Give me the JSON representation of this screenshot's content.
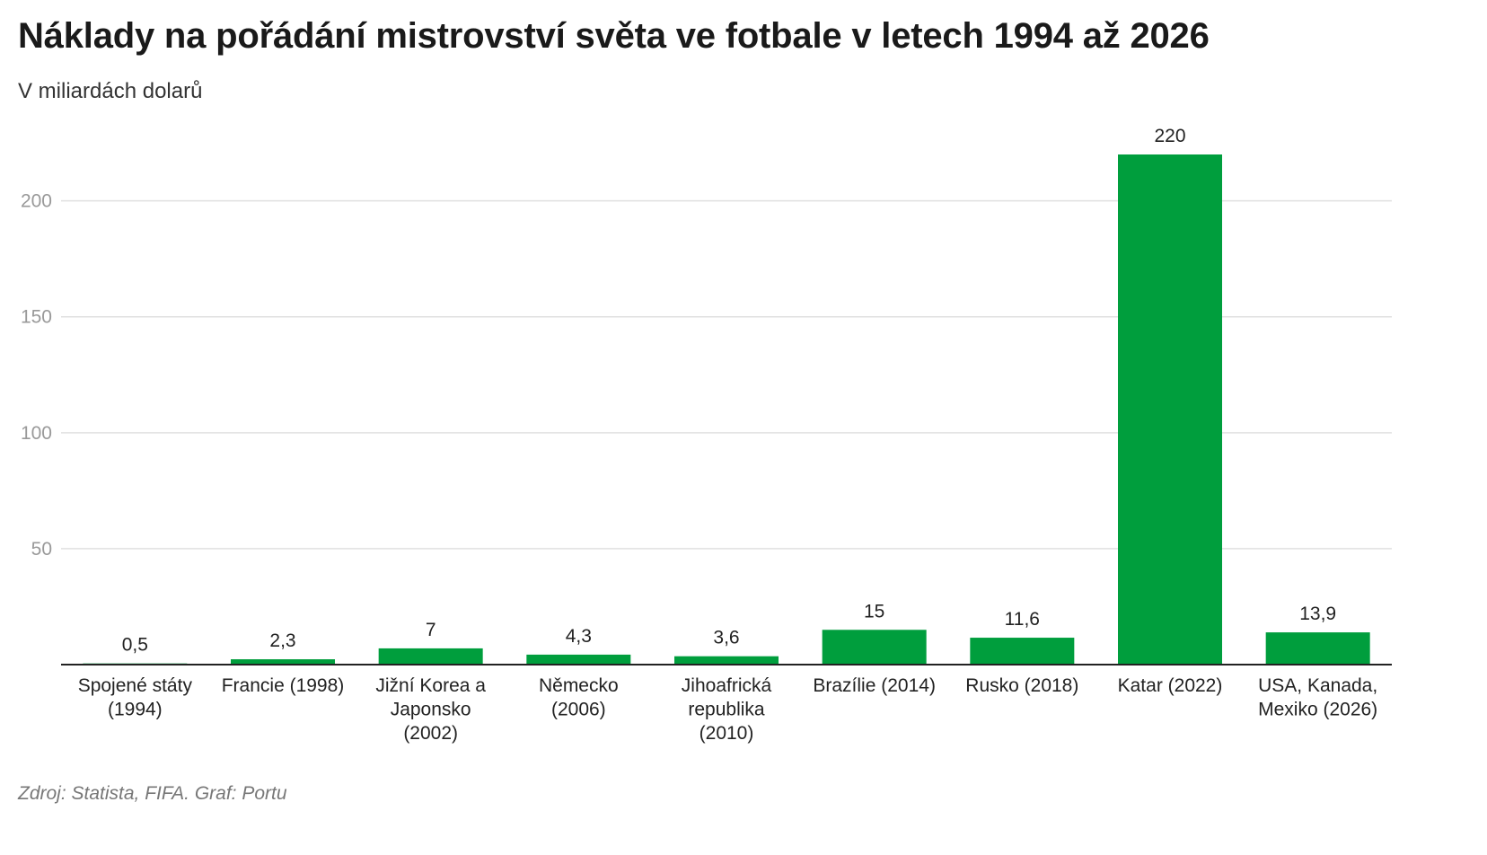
{
  "chart_data": {
    "type": "bar",
    "title": "Náklady na pořádání mistrovství světa ve fotbale v letech 1994 až 2026",
    "subtitle": "V miliardách dolarů",
    "source": "Zdroj: Statista, FIFA. Graf: Portu",
    "categories": [
      [
        "Spojené státy",
        "(1994)"
      ],
      [
        "Francie (1998)"
      ],
      [
        "Jižní Korea a",
        "Japonsko",
        "(2002)"
      ],
      [
        "Německo",
        "(2006)"
      ],
      [
        "Jihoafrická",
        "republika",
        "(2010)"
      ],
      [
        "Brazílie (2014)"
      ],
      [
        "Rusko (2018)"
      ],
      [
        "Katar (2022)"
      ],
      [
        "USA, Kanada,",
        "Mexiko (2026)"
      ]
    ],
    "values": [
      0.5,
      2.3,
      7,
      4.3,
      3.6,
      15,
      11.6,
      220,
      13.9
    ],
    "value_labels": [
      "0,5",
      "2,3",
      "7",
      "4,3",
      "3,6",
      "15",
      "11,6",
      "220",
      "13,9"
    ],
    "yticks": [
      50,
      100,
      150,
      200
    ],
    "ytick_labels": [
      "50",
      "100",
      "150",
      "200"
    ],
    "ylim": [
      0,
      240
    ],
    "grid": true,
    "bar_color": "#009e3d",
    "grid_color": "#e0e0e0",
    "axis_color": "#222222"
  }
}
